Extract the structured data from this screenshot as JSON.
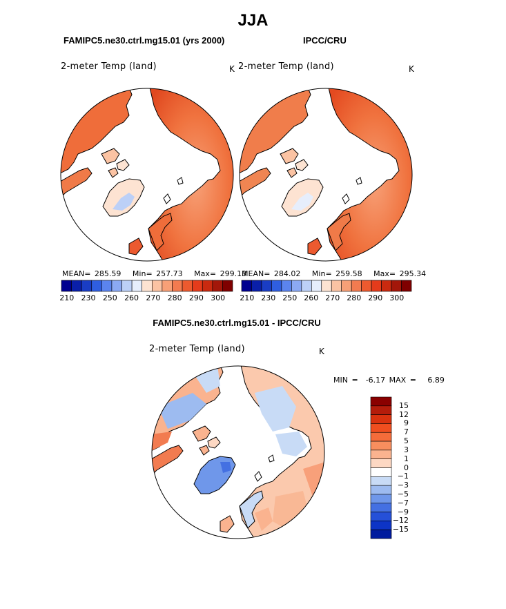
{
  "figure": {
    "season_title": "JJA"
  },
  "panels": {
    "model": {
      "case_title": "FAMIPC5.ne30.ctrl.mg15.01 (yrs 2000)",
      "variable": "2-meter Temp (land)",
      "units": "K",
      "stats": {
        "mean_label": "MEAN=",
        "mean": "285.59",
        "min_label": "Min=",
        "min": "257.73",
        "max_label": "Max=",
        "max": "299.13"
      }
    },
    "obs": {
      "case_title": "IPCC/CRU",
      "variable": "2-meter Temp (land)",
      "units": "K",
      "stats": {
        "mean_label": "MEAN=",
        "mean": "284.02",
        "min_label": "Min=",
        "min": "259.58",
        "max_label": "Max=",
        "max": "295.34"
      }
    },
    "diff": {
      "case_title": "FAMIPC5.ne30.ctrl.mg15.01 - IPCC/CRU",
      "variable": "2-meter Temp (land)",
      "units": "K",
      "stats": {
        "min_label": "MIN =",
        "min": "-6.17",
        "max_label": "MAX =",
        "max": "6.89"
      }
    }
  },
  "colorbars": {
    "absolute": {
      "tick_labels": [
        "210",
        "230",
        "250",
        "260",
        "270",
        "280",
        "290",
        "300"
      ],
      "colors": [
        "#00008f",
        "#0a1fa8",
        "#1a3dc4",
        "#2f5ee0",
        "#5b84ee",
        "#8ba9f3",
        "#bcd0f7",
        "#e6eefc",
        "#fde3d2",
        "#fbc3a3",
        "#f7a077",
        "#f27b50",
        "#ec5a2f",
        "#e43b1b",
        "#c92a10",
        "#a3170a",
        "#7f0000"
      ]
    },
    "difference": {
      "tick_labels": [
        "15",
        "12",
        "9",
        "7",
        "5",
        "3",
        "1",
        "0",
        "-1",
        "-3",
        "-5",
        "-7",
        "-9",
        "-12",
        "-15"
      ],
      "colors": [
        "#8a0000",
        "#b41c0b",
        "#d9320f",
        "#f04e1f",
        "#f56c3a",
        "#f88e5e",
        "#fab38f",
        "#fdd8c3",
        "#ffffff",
        "#c8dbf6",
        "#9dbbf0",
        "#6f97ea",
        "#4470e2",
        "#2550d8",
        "#0d34c6",
        "#001b9e"
      ]
    }
  }
}
